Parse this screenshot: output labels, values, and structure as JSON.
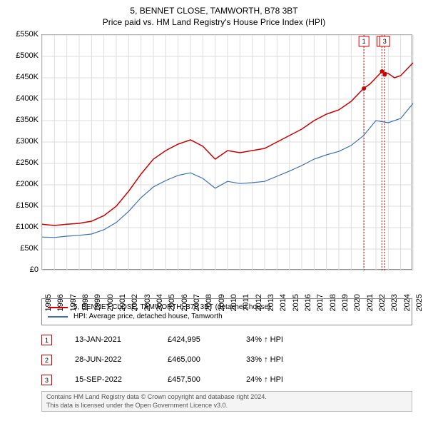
{
  "title": {
    "main": "5, BENNET CLOSE, TAMWORTH, B78 3BT",
    "sub": "Price paid vs. HM Land Registry's House Price Index (HPI)"
  },
  "chart": {
    "type": "line",
    "background_color": "#ffffff",
    "border_color": "#888888",
    "grid_color": "#dddddd",
    "ylim": [
      0,
      550000
    ],
    "ytick_step": 50000,
    "ytick_labels": [
      "£0",
      "£50K",
      "£100K",
      "£150K",
      "£200K",
      "£250K",
      "£300K",
      "£350K",
      "£400K",
      "£450K",
      "£500K",
      "£550K"
    ],
    "xlim": [
      1995,
      2025
    ],
    "xtick_labels": [
      "1995",
      "1996",
      "1997",
      "1998",
      "1999",
      "2000",
      "2001",
      "2002",
      "2003",
      "2004",
      "2005",
      "2006",
      "2007",
      "2008",
      "2009",
      "2010",
      "2011",
      "2012",
      "2013",
      "2014",
      "2015",
      "2016",
      "2017",
      "2018",
      "2019",
      "2020",
      "2021",
      "2022",
      "2023",
      "2024",
      "2025"
    ],
    "series": [
      {
        "name": "5, BENNET CLOSE, TAMWORTH, B78 3BT (detached house)",
        "color": "#cc0000",
        "line_width": 1.5,
        "data": [
          [
            1995,
            108000
          ],
          [
            1996,
            105000
          ],
          [
            1997,
            108000
          ],
          [
            1998,
            110000
          ],
          [
            1999,
            115000
          ],
          [
            2000,
            128000
          ],
          [
            2001,
            150000
          ],
          [
            2002,
            185000
          ],
          [
            2003,
            225000
          ],
          [
            2004,
            260000
          ],
          [
            2005,
            280000
          ],
          [
            2006,
            295000
          ],
          [
            2007,
            305000
          ],
          [
            2008,
            290000
          ],
          [
            2009,
            260000
          ],
          [
            2010,
            280000
          ],
          [
            2011,
            275000
          ],
          [
            2012,
            280000
          ],
          [
            2013,
            285000
          ],
          [
            2014,
            300000
          ],
          [
            2015,
            315000
          ],
          [
            2016,
            330000
          ],
          [
            2017,
            350000
          ],
          [
            2018,
            365000
          ],
          [
            2019,
            375000
          ],
          [
            2020,
            395000
          ],
          [
            2021,
            425000
          ],
          [
            2021.5,
            435000
          ],
          [
            2022,
            450000
          ],
          [
            2022.5,
            465000
          ],
          [
            2023,
            460000
          ],
          [
            2023.5,
            450000
          ],
          [
            2024,
            455000
          ],
          [
            2024.5,
            470000
          ],
          [
            2025,
            485000
          ]
        ]
      },
      {
        "name": "HPI: Average price, detached house, Tamworth",
        "color": "#3b6fb6",
        "line_width": 1.2,
        "data": [
          [
            1995,
            78000
          ],
          [
            1996,
            77000
          ],
          [
            1997,
            80000
          ],
          [
            1998,
            82000
          ],
          [
            1999,
            85000
          ],
          [
            2000,
            95000
          ],
          [
            2001,
            112000
          ],
          [
            2002,
            138000
          ],
          [
            2003,
            170000
          ],
          [
            2004,
            195000
          ],
          [
            2005,
            210000
          ],
          [
            2006,
            222000
          ],
          [
            2007,
            228000
          ],
          [
            2008,
            215000
          ],
          [
            2009,
            192000
          ],
          [
            2010,
            208000
          ],
          [
            2011,
            203000
          ],
          [
            2012,
            205000
          ],
          [
            2013,
            208000
          ],
          [
            2014,
            220000
          ],
          [
            2015,
            232000
          ],
          [
            2016,
            245000
          ],
          [
            2017,
            260000
          ],
          [
            2018,
            270000
          ],
          [
            2019,
            278000
          ],
          [
            2020,
            292000
          ],
          [
            2021,
            315000
          ],
          [
            2022,
            350000
          ],
          [
            2023,
            345000
          ],
          [
            2024,
            355000
          ],
          [
            2025,
            390000
          ]
        ]
      }
    ],
    "markers": [
      {
        "num": "1",
        "x": 2021.03,
        "color": "#cc0000",
        "y": 424995
      },
      {
        "num": "2",
        "x": 2022.49,
        "color": "#cc0000",
        "y": 465000
      },
      {
        "num": "3",
        "x": 2022.71,
        "color": "#cc0000",
        "y": 457500
      }
    ]
  },
  "legend": {
    "items": [
      {
        "color": "#cc0000",
        "label": "5, BENNET CLOSE, TAMWORTH, B78 3BT (detached house)"
      },
      {
        "color": "#3b6fb6",
        "label": "HPI: Average price, detached house, Tamworth"
      }
    ]
  },
  "sales": [
    {
      "num": "1",
      "date": "13-JAN-2021",
      "price": "£424,995",
      "pct": "34% ↑ HPI",
      "color": "#cc0000"
    },
    {
      "num": "2",
      "date": "28-JUN-2022",
      "price": "£465,000",
      "pct": "33% ↑ HPI",
      "color": "#cc0000"
    },
    {
      "num": "3",
      "date": "15-SEP-2022",
      "price": "£457,500",
      "pct": "24% ↑ HPI",
      "color": "#cc0000"
    }
  ],
  "footer": {
    "line1": "Contains HM Land Registry data © Crown copyright and database right 2024.",
    "line2": "This data is licensed under the Open Government Licence v3.0."
  }
}
